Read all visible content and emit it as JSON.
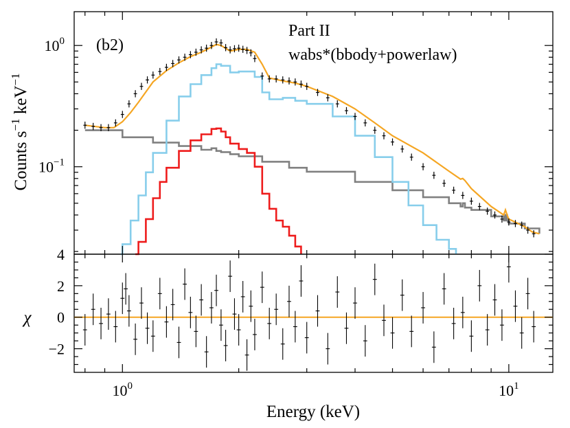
{
  "chart_data": [
    {
      "panel": "top",
      "type": "line",
      "title": "",
      "panel_tag": "(b2)",
      "annotation_lines": [
        "Part II",
        "wabs*(bbody+powerlaw)"
      ],
      "xlabel": "",
      "ylabel_main": "Counts s",
      "ylabel_exp1": "−1",
      "ylabel_mid": " keV",
      "ylabel_exp2": "−1",
      "x_scale": "log",
      "y_scale": "log",
      "xlim": [
        0.75,
        13
      ],
      "ylim": [
        0.019,
        1.9
      ],
      "yticks": [
        {
          "value": 1.0,
          "base": "10",
          "exp": "0"
        },
        {
          "value": 0.1,
          "base": "10",
          "exp": "−1"
        }
      ],
      "grid": false,
      "colors": {
        "data": "#000000",
        "model_total": "#f5a623",
        "bbody_a": "#87ceeb",
        "bbody_b": "#ee1c1c",
        "powerlaw": "#808080"
      },
      "series": [
        {
          "role": "data",
          "x": [
            0.8,
            0.84,
            0.88,
            0.92,
            0.96,
            1.0,
            1.04,
            1.08,
            1.12,
            1.16,
            1.2,
            1.25,
            1.3,
            1.35,
            1.4,
            1.45,
            1.5,
            1.55,
            1.6,
            1.65,
            1.7,
            1.75,
            1.8,
            1.85,
            1.9,
            1.95,
            2.0,
            2.05,
            2.1,
            2.15,
            2.2,
            2.3,
            2.4,
            2.5,
            2.6,
            2.7,
            2.8,
            2.9,
            3.0,
            3.2,
            3.4,
            3.6,
            3.8,
            4.0,
            4.25,
            4.5,
            4.75,
            5.0,
            5.3,
            5.6,
            6.0,
            6.4,
            6.8,
            7.2,
            7.6,
            8.0,
            8.4,
            8.8,
            9.2,
            9.6,
            10.0,
            10.4,
            10.8,
            11.2,
            11.6
          ],
          "y": [
            0.22,
            0.215,
            0.21,
            0.21,
            0.23,
            0.27,
            0.33,
            0.4,
            0.46,
            0.52,
            0.57,
            0.61,
            0.66,
            0.71,
            0.76,
            0.8,
            0.84,
            0.88,
            0.92,
            0.95,
            1.0,
            1.07,
            1.05,
            0.96,
            0.92,
            0.94,
            0.95,
            0.93,
            0.91,
            0.87,
            0.78,
            0.56,
            0.53,
            0.53,
            0.52,
            0.51,
            0.5,
            0.48,
            0.46,
            0.41,
            0.37,
            0.33,
            0.29,
            0.26,
            0.23,
            0.2,
            0.18,
            0.16,
            0.14,
            0.12,
            0.1,
            0.085,
            0.073,
            0.064,
            0.058,
            0.052,
            0.047,
            0.043,
            0.04,
            0.037,
            0.035,
            0.034,
            0.033,
            0.03,
            0.028
          ]
        },
        {
          "role": "model_total",
          "x": [
            0.8,
            0.9,
            0.95,
            1.0,
            1.05,
            1.1,
            1.2,
            1.3,
            1.4,
            1.5,
            1.6,
            1.7,
            1.75,
            1.8,
            1.9,
            2.0,
            2.1,
            2.2,
            2.3,
            2.4,
            2.6,
            2.8,
            3.0,
            3.5,
            4.0,
            4.5,
            5.0,
            6.0,
            7.0,
            7.5,
            7.6,
            7.7,
            8.0,
            9.0,
            9.7,
            9.8,
            9.9,
            10.0,
            11.0,
            11.5,
            12.0
          ],
          "y": [
            0.22,
            0.21,
            0.21,
            0.235,
            0.28,
            0.34,
            0.5,
            0.62,
            0.72,
            0.81,
            0.88,
            0.97,
            1.02,
            1.0,
            0.9,
            0.93,
            0.93,
            0.88,
            0.7,
            0.54,
            0.51,
            0.49,
            0.46,
            0.38,
            0.3,
            0.23,
            0.18,
            0.13,
            0.092,
            0.079,
            0.08,
            0.077,
            0.066,
            0.047,
            0.04,
            0.044,
            0.04,
            0.037,
            0.032,
            0.029,
            0.028
          ]
        },
        {
          "role": "bbody_a",
          "x": [
            0.99,
            1.0,
            1.05,
            1.1,
            1.15,
            1.2,
            1.3,
            1.4,
            1.5,
            1.6,
            1.7,
            1.75,
            1.8,
            1.9,
            2.0,
            2.1,
            2.2,
            2.3,
            2.4,
            2.6,
            2.8,
            3.0,
            3.5,
            4.0,
            4.5,
            5.0,
            5.5,
            6.0,
            6.5,
            7.0,
            7.3
          ],
          "y": [
            0.019,
            0.023,
            0.036,
            0.058,
            0.09,
            0.13,
            0.24,
            0.38,
            0.48,
            0.57,
            0.65,
            0.7,
            0.68,
            0.6,
            0.61,
            0.61,
            0.55,
            0.41,
            0.36,
            0.37,
            0.35,
            0.33,
            0.26,
            0.18,
            0.12,
            0.075,
            0.048,
            0.033,
            0.025,
            0.021,
            0.019
          ]
        },
        {
          "role": "bbody_b",
          "x": [
            1.08,
            1.1,
            1.15,
            1.2,
            1.25,
            1.3,
            1.4,
            1.5,
            1.6,
            1.7,
            1.75,
            1.8,
            1.85,
            1.9,
            2.0,
            2.1,
            2.2,
            2.3,
            2.4,
            2.5,
            2.6,
            2.7,
            2.8,
            2.9
          ],
          "y": [
            0.019,
            0.024,
            0.037,
            0.055,
            0.075,
            0.098,
            0.135,
            0.165,
            0.185,
            0.205,
            0.207,
            0.195,
            0.175,
            0.155,
            0.14,
            0.13,
            0.1,
            0.06,
            0.045,
            0.036,
            0.032,
            0.027,
            0.022,
            0.019
          ]
        },
        {
          "role": "powerlaw",
          "x": [
            0.8,
            1.0,
            1.2,
            1.4,
            1.6,
            1.7,
            1.75,
            1.8,
            1.9,
            2.0,
            2.3,
            2.7,
            3.0,
            4.0,
            5.0,
            6.0,
            7.0,
            7.5,
            7.6,
            7.7,
            8.0,
            9.0,
            9.7,
            9.8,
            9.9,
            10.0,
            11.0,
            12.0
          ],
          "y": [
            0.2,
            0.175,
            0.158,
            0.148,
            0.138,
            0.142,
            0.135,
            0.132,
            0.127,
            0.122,
            0.11,
            0.098,
            0.091,
            0.075,
            0.064,
            0.056,
            0.05,
            0.047,
            0.05,
            0.046,
            0.044,
            0.039,
            0.036,
            0.04,
            0.036,
            0.034,
            0.031,
            0.028
          ]
        }
      ]
    },
    {
      "panel": "bottom",
      "type": "scatter",
      "title": "",
      "xlabel": "Energy (keV)",
      "ylabel": "χ",
      "x_scale": "log",
      "xlim": [
        0.75,
        13
      ],
      "ylim": [
        -3.5,
        4
      ],
      "yticks": [
        -2,
        0,
        2,
        4
      ],
      "xticks": [
        {
          "value": 1,
          "base": "10",
          "exp": "0"
        },
        {
          "value": 10,
          "base": "10",
          "exp": "1"
        }
      ],
      "zero_line_color": "#f5a623",
      "series": [
        {
          "role": "residuals",
          "x": [
            0.8,
            0.84,
            0.88,
            0.92,
            0.96,
            1.0,
            1.02,
            1.04,
            1.08,
            1.12,
            1.16,
            1.2,
            1.25,
            1.3,
            1.35,
            1.4,
            1.45,
            1.5,
            1.55,
            1.6,
            1.65,
            1.7,
            1.75,
            1.8,
            1.85,
            1.9,
            1.95,
            2.0,
            2.05,
            2.1,
            2.15,
            2.2,
            2.3,
            2.4,
            2.5,
            2.6,
            2.7,
            2.8,
            2.9,
            3.0,
            3.2,
            3.4,
            3.6,
            3.8,
            4.0,
            4.25,
            4.5,
            4.75,
            5.0,
            5.3,
            5.6,
            6.0,
            6.4,
            6.8,
            7.2,
            7.6,
            8.0,
            8.4,
            8.8,
            9.2,
            9.6,
            10.0,
            10.4,
            10.8,
            11.2,
            11.6
          ],
          "y": [
            -0.8,
            0.5,
            -0.4,
            0.2,
            -0.6,
            1.2,
            1.8,
            0.4,
            -1.4,
            0.9,
            -0.7,
            -1.2,
            1.5,
            -0.3,
            0.8,
            -1.6,
            2.1,
            0.3,
            -0.9,
            1.1,
            -2.2,
            0.6,
            1.7,
            -0.5,
            -1.8,
            2.6,
            0.2,
            -0.8,
            1.3,
            -2.4,
            0.7,
            -1.1,
            1.9,
            -0.4,
            0.5,
            -1.7,
            1.0,
            -0.6,
            2.3,
            -1.3,
            0.4,
            -2.0,
            1.6,
            -0.7,
            0.9,
            -1.5,
            2.4,
            -0.2,
            -1.0,
            1.4,
            -0.9,
            0.6,
            -1.9,
            1.8,
            -0.4,
            0.3,
            -1.2,
            2.0,
            -0.8,
            1.1,
            -0.5,
            3.2,
            0.7,
            -1.0,
            1.5,
            -0.6
          ],
          "err": 1
        }
      ]
    }
  ]
}
